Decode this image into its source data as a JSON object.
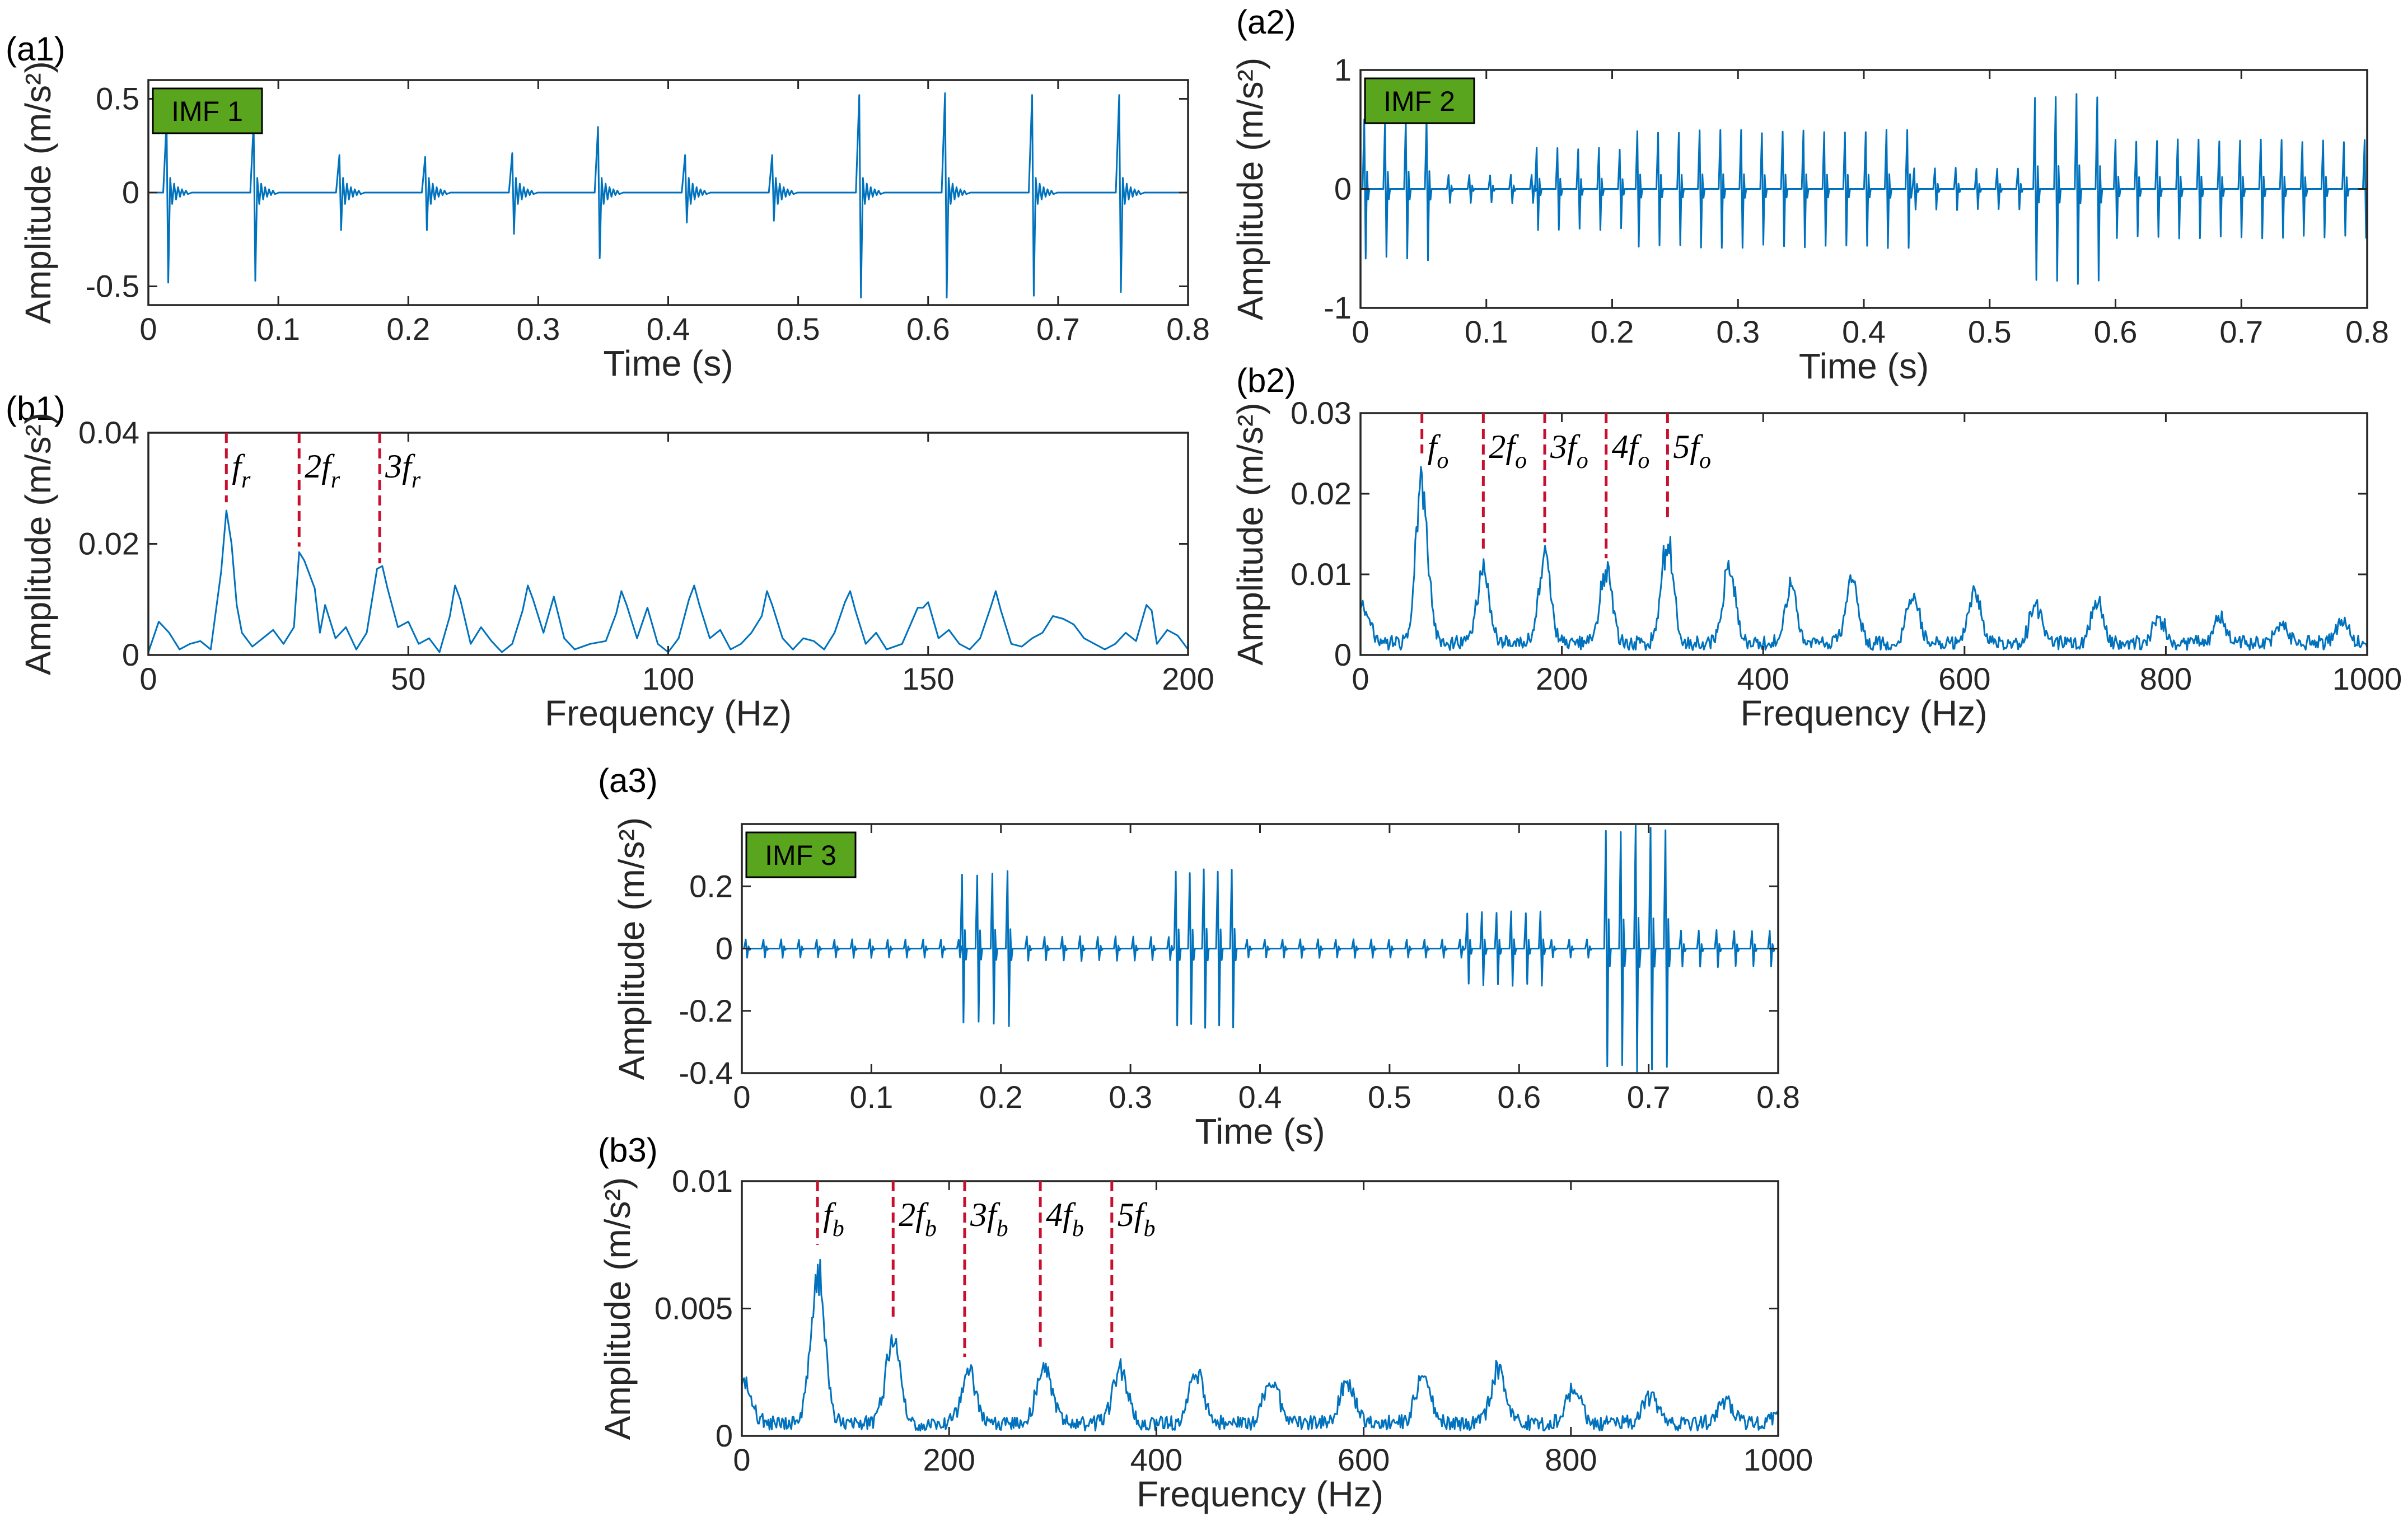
{
  "colors": {
    "signal": "#0072BD",
    "marker": "#C8102E",
    "badge": "#5AA51E",
    "axis": "#262626"
  },
  "chart_data": [
    {
      "id": "a1",
      "panel_label": "(a1)",
      "type": "line",
      "kind": "time",
      "badge": "IMF 1",
      "xlabel": "Time (s)",
      "ylabel": "Amplitude (m/s²)",
      "xlim": [
        0,
        0.8
      ],
      "ylim": [
        -0.6,
        0.6
      ],
      "xticks": [
        0,
        0.1,
        0.2,
        0.3,
        0.4,
        0.5,
        0.6,
        0.7,
        0.8
      ],
      "xtick_labels": [
        "0",
        "0.1",
        "0.2",
        "0.3",
        "0.4",
        "0.5",
        "0.6",
        "0.7",
        "0.8"
      ],
      "yticks": [
        -0.5,
        0,
        0.5
      ],
      "ytick_labels": [
        "-0.5",
        "0",
        "0.5"
      ],
      "impulses": [
        {
          "t": 0.014,
          "pos": 0.38,
          "neg": -0.48
        },
        {
          "t": 0.081,
          "pos": 0.37,
          "neg": -0.47
        },
        {
          "t": 0.147,
          "pos": 0.2,
          "neg": -0.2
        },
        {
          "t": 0.213,
          "pos": 0.19,
          "neg": -0.2
        },
        {
          "t": 0.28,
          "pos": 0.21,
          "neg": -0.22
        },
        {
          "t": 0.346,
          "pos": 0.35,
          "neg": -0.35
        },
        {
          "t": 0.413,
          "pos": 0.2,
          "neg": -0.16
        },
        {
          "t": 0.48,
          "pos": 0.2,
          "neg": -0.15
        },
        {
          "t": 0.547,
          "pos": 0.52,
          "neg": -0.56
        },
        {
          "t": 0.613,
          "pos": 0.53,
          "neg": -0.56
        },
        {
          "t": 0.68,
          "pos": 0.52,
          "neg": -0.55
        },
        {
          "t": 0.747,
          "pos": 0.52,
          "neg": -0.53
        }
      ]
    },
    {
      "id": "a2",
      "panel_label": "(a2)",
      "type": "line",
      "kind": "time",
      "badge": "IMF 2",
      "xlabel": "Time (s)",
      "ylabel": "Amplitude (m/s²)",
      "xlim": [
        0,
        0.8
      ],
      "ylim": [
        -1,
        1
      ],
      "xticks": [
        0,
        0.1,
        0.2,
        0.3,
        0.4,
        0.5,
        0.6,
        0.7,
        0.8
      ],
      "xtick_labels": [
        "0",
        "0.1",
        "0.2",
        "0.3",
        "0.4",
        "0.5",
        "0.6",
        "0.7",
        "0.8"
      ],
      "yticks": [
        -1,
        0,
        1
      ],
      "ytick_labels": [
        "-1",
        "0",
        "1"
      ],
      "segments": [
        {
          "t0": 0.003,
          "t1": 0.055,
          "dt": 0.0165,
          "amp": 0.6
        },
        {
          "t0": 0.07,
          "t1": 0.14,
          "dt": 0.0165,
          "amp": 0.12
        },
        {
          "t0": 0.14,
          "t1": 0.22,
          "dt": 0.0165,
          "amp": 0.35
        },
        {
          "t0": 0.22,
          "t1": 0.44,
          "dt": 0.0165,
          "amp": 0.5
        },
        {
          "t0": 0.44,
          "t1": 0.53,
          "dt": 0.0165,
          "amp": 0.18
        },
        {
          "t0": 0.536,
          "t1": 0.59,
          "dt": 0.0165,
          "amp": 0.8
        },
        {
          "t0": 0.6,
          "t1": 0.8,
          "dt": 0.0165,
          "amp": 0.42
        }
      ]
    },
    {
      "id": "b1",
      "panel_label": "(b1)",
      "type": "line",
      "kind": "spectrum",
      "xlabel": "Frequency (Hz)",
      "ylabel": "Amplitude (m/s²)",
      "xlim": [
        0,
        200
      ],
      "ylim": [
        0,
        0.04
      ],
      "xticks": [
        0,
        50,
        100,
        150,
        200
      ],
      "xtick_labels": [
        "0",
        "50",
        "100",
        "150",
        "200"
      ],
      "yticks": [
        0,
        0.02,
        0.04
      ],
      "ytick_labels": [
        "0",
        "0.02",
        "0.04"
      ],
      "points": [
        [
          0,
          0.0005
        ],
        [
          2,
          0.006
        ],
        [
          4,
          0.004
        ],
        [
          6,
          0.001
        ],
        [
          8,
          0.002
        ],
        [
          10,
          0.0025
        ],
        [
          12,
          0.001
        ],
        [
          14,
          0.015
        ],
        [
          15,
          0.026
        ],
        [
          16,
          0.02
        ],
        [
          17,
          0.009
        ],
        [
          18,
          0.004
        ],
        [
          20,
          0.0015
        ],
        [
          22,
          0.003
        ],
        [
          24,
          0.0045
        ],
        [
          26,
          0.002
        ],
        [
          28,
          0.005
        ],
        [
          29,
          0.0185
        ],
        [
          30,
          0.017
        ],
        [
          32,
          0.012
        ],
        [
          33,
          0.004
        ],
        [
          34,
          0.009
        ],
        [
          36,
          0.003
        ],
        [
          38,
          0.005
        ],
        [
          40,
          0.001
        ],
        [
          42,
          0.004
        ],
        [
          44,
          0.0155
        ],
        [
          45,
          0.016
        ],
        [
          46,
          0.012
        ],
        [
          48,
          0.005
        ],
        [
          50,
          0.006
        ],
        [
          52,
          0.002
        ],
        [
          54,
          0.003
        ],
        [
          56,
          0.0005
        ],
        [
          58,
          0.007
        ],
        [
          59,
          0.0125
        ],
        [
          60,
          0.01
        ],
        [
          62,
          0.002
        ],
        [
          64,
          0.005
        ],
        [
          66,
          0.0025
        ],
        [
          68,
          0.0005
        ],
        [
          70,
          0.002
        ],
        [
          72,
          0.008
        ],
        [
          73,
          0.0125
        ],
        [
          74,
          0.01
        ],
        [
          76,
          0.004
        ],
        [
          78,
          0.0105
        ],
        [
          80,
          0.003
        ],
        [
          82,
          0.001
        ],
        [
          85,
          0.002
        ],
        [
          88,
          0.0025
        ],
        [
          90,
          0.0075
        ],
        [
          91,
          0.0115
        ],
        [
          92,
          0.009
        ],
        [
          94,
          0.003
        ],
        [
          96,
          0.0085
        ],
        [
          98,
          0.002
        ],
        [
          100,
          0.0005
        ],
        [
          102,
          0.003
        ],
        [
          104,
          0.01
        ],
        [
          105,
          0.0125
        ],
        [
          106,
          0.009
        ],
        [
          108,
          0.003
        ],
        [
          110,
          0.0045
        ],
        [
          112,
          0.001
        ],
        [
          114,
          0.002
        ],
        [
          116,
          0.004
        ],
        [
          118,
          0.007
        ],
        [
          119,
          0.0115
        ],
        [
          120,
          0.009
        ],
        [
          122,
          0.003
        ],
        [
          124,
          0.001
        ],
        [
          126,
          0.003
        ],
        [
          128,
          0.0025
        ],
        [
          130,
          0.001
        ],
        [
          132,
          0.004
        ],
        [
          134,
          0.0095
        ],
        [
          135,
          0.0115
        ],
        [
          136,
          0.008
        ],
        [
          138,
          0.002
        ],
        [
          140,
          0.004
        ],
        [
          142,
          0.001
        ],
        [
          145,
          0.002
        ],
        [
          148,
          0.0085
        ],
        [
          149,
          0.0085
        ],
        [
          150,
          0.0095
        ],
        [
          152,
          0.003
        ],
        [
          154,
          0.0045
        ],
        [
          156,
          0.002
        ],
        [
          158,
          0.001
        ],
        [
          160,
          0.003
        ],
        [
          162,
          0.0085
        ],
        [
          163,
          0.0115
        ],
        [
          164,
          0.008
        ],
        [
          166,
          0.002
        ],
        [
          168,
          0.0015
        ],
        [
          170,
          0.003
        ],
        [
          172,
          0.004
        ],
        [
          174,
          0.007
        ],
        [
          176,
          0.0065
        ],
        [
          178,
          0.0055
        ],
        [
          180,
          0.003
        ],
        [
          182,
          0.002
        ],
        [
          184,
          0.001
        ],
        [
          186,
          0.002
        ],
        [
          188,
          0.004
        ],
        [
          190,
          0.0025
        ],
        [
          192,
          0.009
        ],
        [
          193,
          0.008
        ],
        [
          194,
          0.002
        ],
        [
          196,
          0.0045
        ],
        [
          198,
          0.0035
        ],
        [
          200,
          0.001
        ]
      ],
      "markers": [
        {
          "x": 15,
          "y_top": 0.04,
          "y_bottom": 0.0275,
          "label": "f",
          "sub": "r"
        },
        {
          "x": 29,
          "y_top": 0.04,
          "y_bottom": 0.0195,
          "label": "2f",
          "sub": "r"
        },
        {
          "x": 44.5,
          "y_top": 0.04,
          "y_bottom": 0.0165,
          "label": "3f",
          "sub": "r"
        }
      ]
    },
    {
      "id": "b2",
      "panel_label": "(b2)",
      "type": "line",
      "kind": "spectrum",
      "xlabel": "Frequency (Hz)",
      "ylabel": "Amplitude (m/s²)",
      "xlim": [
        0,
        1000
      ],
      "ylim": [
        0,
        0.03
      ],
      "xticks": [
        0,
        200,
        400,
        600,
        800,
        1000
      ],
      "xtick_labels": [
        "0",
        "200",
        "400",
        "600",
        "800",
        "1000"
      ],
      "yticks": [
        0,
        0.01,
        0.02,
        0.03
      ],
      "ytick_labels": [
        "0",
        "0.01",
        "0.02",
        "0.03"
      ],
      "base_level": 0.0015,
      "peak_width": 6,
      "peaks": [
        [
          3,
          0.007
        ],
        [
          61,
          0.024
        ],
        [
          122,
          0.012
        ],
        [
          183,
          0.0135
        ],
        [
          244,
          0.0115
        ],
        [
          305,
          0.016
        ],
        [
          366,
          0.013
        ],
        [
          427,
          0.0095
        ],
        [
          488,
          0.0105
        ],
        [
          549,
          0.008
        ],
        [
          610,
          0.009
        ],
        [
          671,
          0.007
        ],
        [
          732,
          0.007
        ],
        [
          793,
          0.005
        ],
        [
          854,
          0.005
        ],
        [
          915,
          0.004
        ],
        [
          976,
          0.005
        ]
      ],
      "markers": [
        {
          "x": 61,
          "y_top": 0.03,
          "y_bottom": 0.025,
          "label": "f",
          "sub": "o"
        },
        {
          "x": 122,
          "y_top": 0.03,
          "y_bottom": 0.0125,
          "label": "2f",
          "sub": "o"
        },
        {
          "x": 183,
          "y_top": 0.03,
          "y_bottom": 0.014,
          "label": "3f",
          "sub": "o"
        },
        {
          "x": 244,
          "y_top": 0.03,
          "y_bottom": 0.012,
          "label": "4f",
          "sub": "o"
        },
        {
          "x": 305,
          "y_top": 0.03,
          "y_bottom": 0.0165,
          "label": "5f",
          "sub": "o"
        }
      ]
    },
    {
      "id": "a3",
      "panel_label": "(a3)",
      "type": "line",
      "kind": "time",
      "badge": "IMF 3",
      "xlabel": "Time (s)",
      "ylabel": "Amplitude (m/s²)",
      "xlim": [
        0,
        0.8
      ],
      "ylim": [
        -0.4,
        0.4
      ],
      "xticks": [
        0,
        0.1,
        0.2,
        0.3,
        0.4,
        0.5,
        0.6,
        0.7,
        0.8
      ],
      "xtick_labels": [
        "0",
        "0.1",
        "0.2",
        "0.3",
        "0.4",
        "0.5",
        "0.6",
        "0.7",
        "0.8"
      ],
      "yticks": [
        -0.4,
        -0.2,
        0,
        0.2
      ],
      "ytick_labels": [
        "-0.4",
        "-0.2",
        "0",
        "0.2"
      ],
      "segments": [
        {
          "t0": 0.003,
          "t1": 0.17,
          "dt": 0.0137,
          "amp": 0.03
        },
        {
          "t0": 0.17,
          "t1": 0.215,
          "dt": 0.0117,
          "amp": 0.25
        },
        {
          "t0": 0.22,
          "t1": 0.33,
          "dt": 0.0137,
          "amp": 0.04
        },
        {
          "t0": 0.335,
          "t1": 0.38,
          "dt": 0.0108,
          "amp": 0.26
        },
        {
          "t0": 0.39,
          "t1": 0.555,
          "dt": 0.0137,
          "amp": 0.03
        },
        {
          "t0": 0.56,
          "t1": 0.62,
          "dt": 0.0113,
          "amp": 0.12
        },
        {
          "t0": 0.625,
          "t1": 0.66,
          "dt": 0.0137,
          "amp": 0.03
        },
        {
          "t0": 0.667,
          "t1": 0.715,
          "dt": 0.0115,
          "amp": 0.4
        },
        {
          "t0": 0.725,
          "t1": 0.8,
          "dt": 0.0137,
          "amp": 0.06
        }
      ]
    },
    {
      "id": "b3",
      "panel_label": "(b3)",
      "type": "line",
      "kind": "spectrum",
      "xlabel": "Frequency (Hz)",
      "ylabel": "Amplitude (m/s²)",
      "xlim": [
        0,
        1000
      ],
      "ylim": [
        0,
        0.01
      ],
      "xticks": [
        0,
        200,
        400,
        600,
        800,
        1000
      ],
      "xtick_labels": [
        "0",
        "200",
        "400",
        "600",
        "800",
        "1000"
      ],
      "yticks": [
        0,
        0.005,
        0.01
      ],
      "ytick_labels": [
        "0",
        "0.005",
        "0.01"
      ],
      "base_level": 0.0005,
      "peak_width": 7,
      "peaks": [
        [
          3,
          0.0022
        ],
        [
          73,
          0.0073
        ],
        [
          146,
          0.0042
        ],
        [
          219,
          0.0028
        ],
        [
          292,
          0.0032
        ],
        [
          365,
          0.003
        ],
        [
          438,
          0.0028
        ],
        [
          511,
          0.0025
        ],
        [
          584,
          0.0023
        ],
        [
          657,
          0.0026
        ],
        [
          730,
          0.003
        ],
        [
          803,
          0.002
        ],
        [
          876,
          0.0017
        ],
        [
          949,
          0.0015
        ],
        [
          1000,
          0.0008
        ]
      ],
      "markers": [
        {
          "x": 73,
          "y_top": 0.01,
          "y_bottom": 0.0075,
          "label": "f",
          "sub": "b"
        },
        {
          "x": 146,
          "y_top": 0.01,
          "y_bottom": 0.0045,
          "label": "2f",
          "sub": "b"
        },
        {
          "x": 215,
          "y_top": 0.01,
          "y_bottom": 0.0031,
          "label": "3f",
          "sub": "b"
        },
        {
          "x": 288,
          "y_top": 0.01,
          "y_bottom": 0.0035,
          "label": "4f",
          "sub": "b"
        },
        {
          "x": 357,
          "y_top": 0.01,
          "y_bottom": 0.0033,
          "label": "5f",
          "sub": "b"
        }
      ]
    }
  ]
}
